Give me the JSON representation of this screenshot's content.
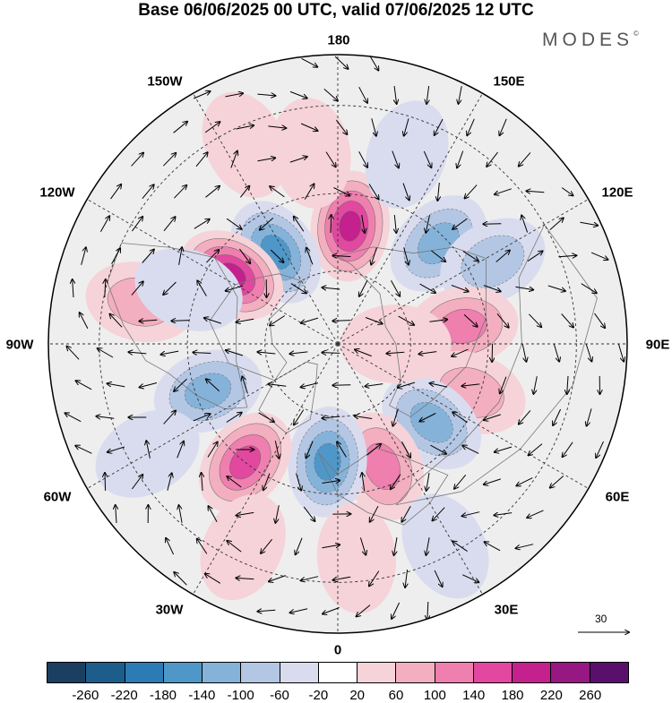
{
  "title": "Base 06/06/2025 00 UTC, valid 07/06/2025 12 UTC",
  "brand": "MODES",
  "brand_mark": "©",
  "longitude_labels": [
    "180",
    "150E",
    "120E",
    "90E",
    "60E",
    "30E",
    "0",
    "30W",
    "60W",
    "90W",
    "120W",
    "150W"
  ],
  "reference_vector": {
    "value": "30"
  },
  "colorbar": {
    "tick_labels": [
      "-260",
      "-220",
      "-180",
      "-140",
      "-100",
      "-60",
      "-20",
      "20",
      "60",
      "100",
      "140",
      "180",
      "220",
      "260"
    ],
    "colors": [
      "#1a3f61",
      "#1d5d8c",
      "#2c7bb5",
      "#4f97c8",
      "#85b2d9",
      "#b3c7e4",
      "#d9dcee",
      "#ffffff",
      "#f6d3d9",
      "#f3aec0",
      "#ef7fae",
      "#e2489f",
      "#c4208e",
      "#971783",
      "#5a0f6d"
    ]
  },
  "anomalies": [
    {
      "lon": 174,
      "lat": 58,
      "value": 200
    },
    {
      "lon": 214,
      "lat": 60,
      "value": -160
    },
    {
      "lon": 237,
      "lat": 56,
      "value": 230
    },
    {
      "lon": 188,
      "lat": 40,
      "value": 60
    },
    {
      "lon": 135,
      "lat": 52,
      "value": -130
    },
    {
      "lon": 118,
      "lat": 44,
      "value": -90
    },
    {
      "lon": 98,
      "lat": 56,
      "value": 130
    },
    {
      "lon": 70,
      "lat": 52,
      "value": 80
    },
    {
      "lon": 50,
      "lat": 57,
      "value": -150
    },
    {
      "lon": 20,
      "lat": 55,
      "value": 140
    },
    {
      "lon": 355,
      "lat": 58,
      "value": -170
    },
    {
      "lon": 322,
      "lat": 50,
      "value": 170
    },
    {
      "lon": 290,
      "lat": 53,
      "value": -120
    },
    {
      "lon": 258,
      "lat": 38,
      "value": 90
    },
    {
      "lon": 250,
      "lat": 48,
      "value": -60
    },
    {
      "lon": 5,
      "lat": 35,
      "value": 60
    },
    {
      "lon": 28,
      "lat": 32,
      "value": -70
    },
    {
      "lon": 335,
      "lat": 33,
      "value": 40
    },
    {
      "lon": 160,
      "lat": 38,
      "value": -70
    },
    {
      "lon": 90,
      "lat": 74,
      "value": 60
    },
    {
      "lon": 300,
      "lat": 34,
      "value": -40
    },
    {
      "lon": 205,
      "lat": 34,
      "value": 40
    }
  ]
}
